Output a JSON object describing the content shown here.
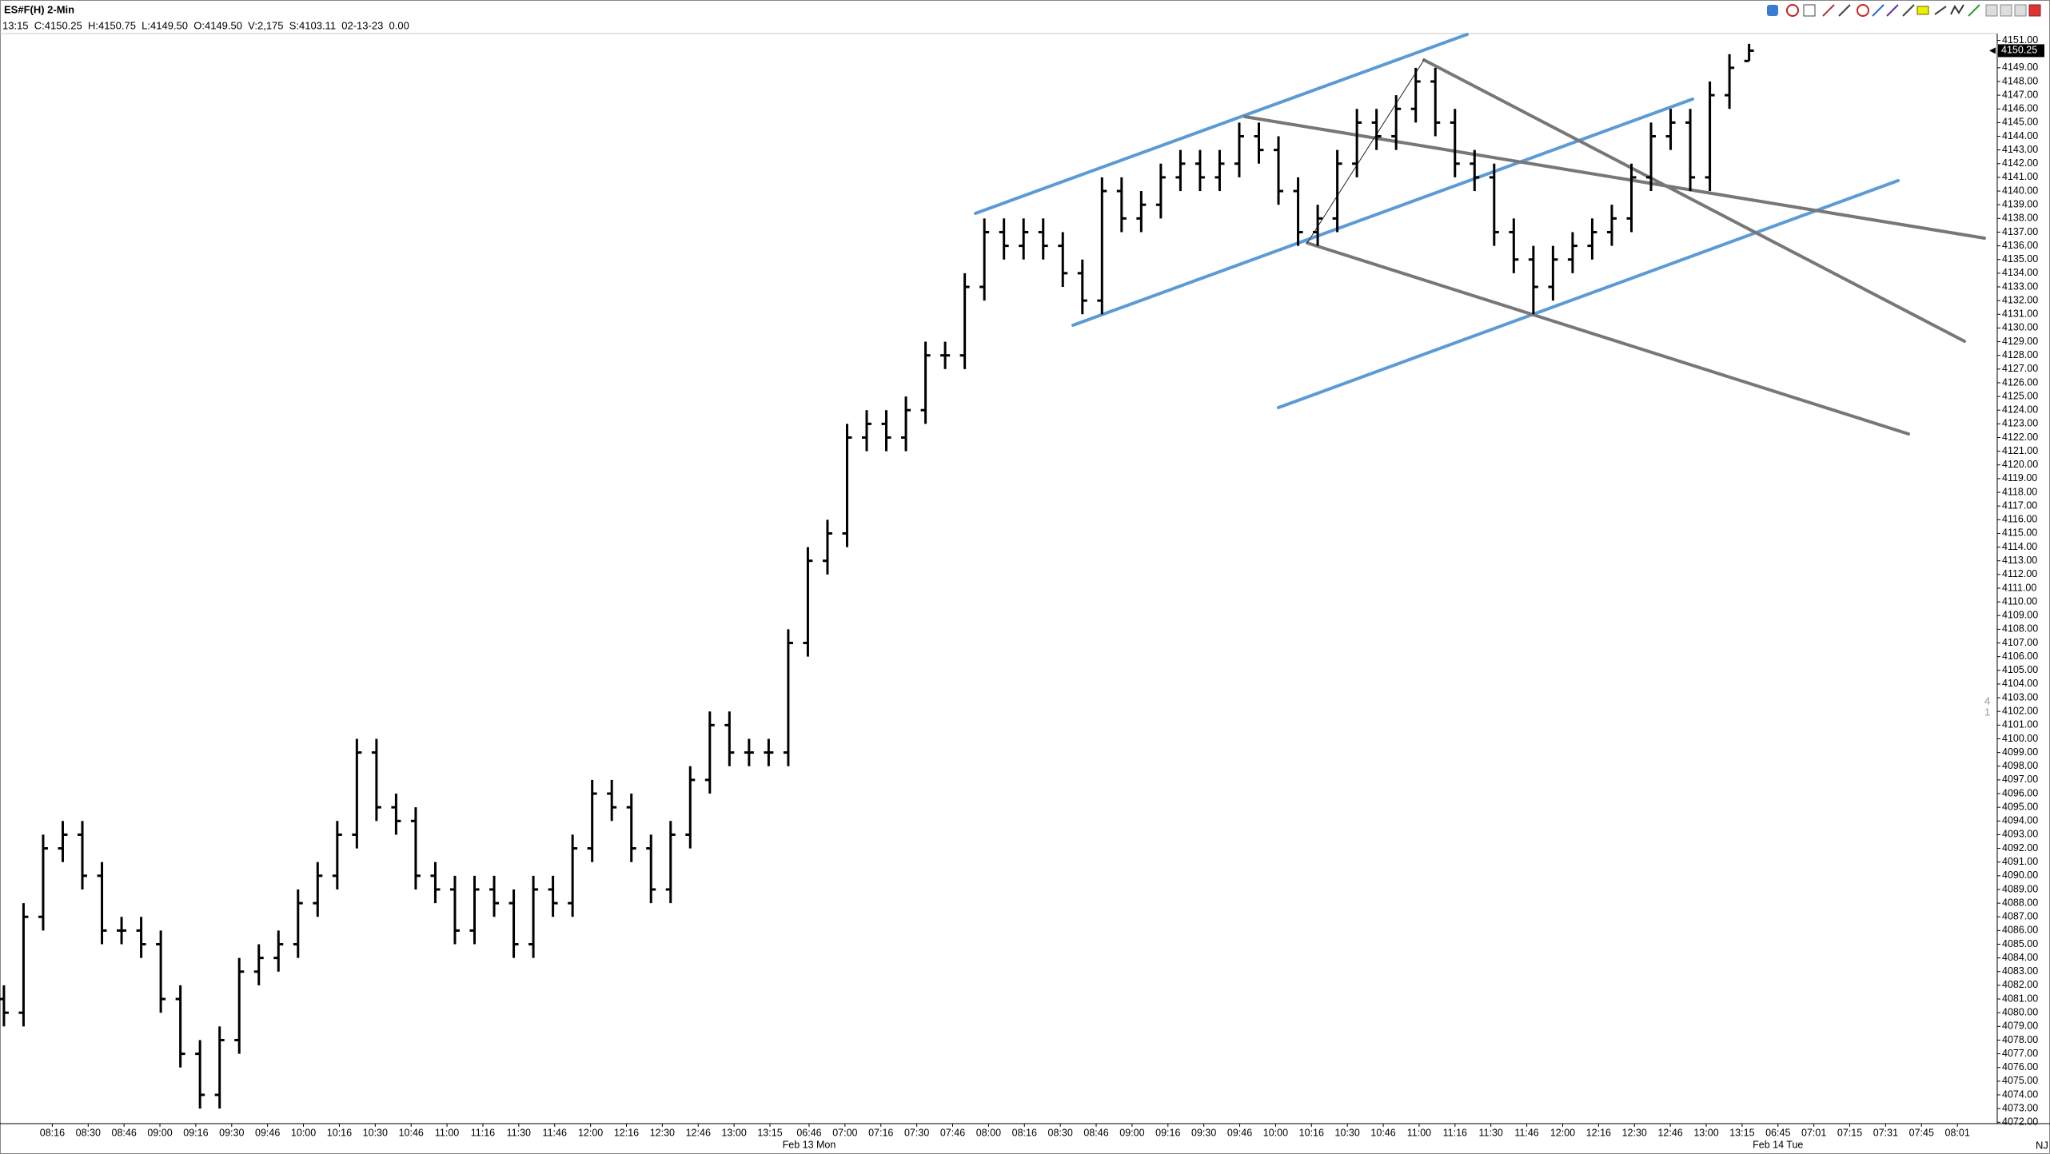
{
  "chart_data": {
    "type": "ohlc",
    "title": "ES#F(H) 2-Min",
    "subtitle": "13:15  C:4150.25  H:4150.75  L:4149.50  O:4149.50  V:2,175  S:4103.11  02-13-23  0.00",
    "last_price": 4150.25,
    "side_marker": [
      "4",
      "1"
    ],
    "corner_label": "NJ",
    "color": "#000000",
    "ylim": [
      4071.9,
      4151.5
    ],
    "yticks": [
      {
        "value": 4072,
        "label": "4072.00"
      },
      {
        "value": 4073,
        "label": "4073.00"
      },
      {
        "value": 4074,
        "label": "4074.00"
      },
      {
        "value": 4075,
        "label": "4075.00"
      },
      {
        "value": 4076,
        "label": "4076.00"
      },
      {
        "value": 4077,
        "label": "4077.00"
      },
      {
        "value": 4078,
        "label": "4078.00"
      },
      {
        "value": 4079,
        "label": "4079.00"
      },
      {
        "value": 4080,
        "label": "4080.00"
      },
      {
        "value": 4081,
        "label": "4081.00"
      },
      {
        "value": 4082,
        "label": "4082.00"
      },
      {
        "value": 4083,
        "label": "4083.00"
      },
      {
        "value": 4084,
        "label": "4084.00"
      },
      {
        "value": 4085,
        "label": "4085.00"
      },
      {
        "value": 4086,
        "label": "4086.00"
      },
      {
        "value": 4087,
        "label": "4087.00"
      },
      {
        "value": 4088,
        "label": "4088.00"
      },
      {
        "value": 4089,
        "label": "4089.00"
      },
      {
        "value": 4090,
        "label": "4090.00"
      },
      {
        "value": 4091,
        "label": "4091.00"
      },
      {
        "value": 4092,
        "label": "4092.00"
      },
      {
        "value": 4093,
        "label": "4093.00"
      },
      {
        "value": 4094,
        "label": "4094.00"
      },
      {
        "value": 4095,
        "label": "4095.00"
      },
      {
        "value": 4096,
        "label": "4096.00"
      },
      {
        "value": 4097,
        "label": "4097.00"
      },
      {
        "value": 4098,
        "label": "4098.00"
      },
      {
        "value": 4099,
        "label": "4099.00"
      },
      {
        "value": 4100,
        "label": "4100.00"
      },
      {
        "value": 4101,
        "label": "4101.00"
      },
      {
        "value": 4102,
        "label": "4102.00"
      },
      {
        "value": 4103,
        "label": "4103.00"
      },
      {
        "value": 4104,
        "label": "4104.00"
      },
      {
        "value": 4105,
        "label": "4105.00"
      },
      {
        "value": 4106,
        "label": "4106.00"
      },
      {
        "value": 4107,
        "label": "4107.00"
      },
      {
        "value": 4108,
        "label": "4108.00"
      },
      {
        "value": 4109,
        "label": "4109.00"
      },
      {
        "value": 4110,
        "label": "4110.00"
      },
      {
        "value": 4111,
        "label": "4111.00"
      },
      {
        "value": 4112,
        "label": "4112.00"
      },
      {
        "value": 4113,
        "label": "4113.00"
      },
      {
        "value": 4114,
        "label": "4114.00"
      },
      {
        "value": 4115,
        "label": "4115.00"
      },
      {
        "value": 4116,
        "label": "4116.00"
      },
      {
        "value": 4117,
        "label": "4117.00"
      },
      {
        "value": 4118,
        "label": "4118.00"
      },
      {
        "value": 4119,
        "label": "4119.00"
      },
      {
        "value": 4120,
        "label": "4120.00"
      },
      {
        "value": 4121,
        "label": "4121.00"
      },
      {
        "value": 4122,
        "label": "4122.00"
      },
      {
        "value": 4123,
        "label": "4123.00"
      },
      {
        "value": 4124,
        "label": "4124.00"
      },
      {
        "value": 4125,
        "label": "4125.00"
      },
      {
        "value": 4126,
        "label": "4126.00"
      },
      {
        "value": 4127,
        "label": "4127.00"
      },
      {
        "value": 4128,
        "label": "4128.00"
      },
      {
        "value": 4129,
        "label": "4129.00"
      },
      {
        "value": 4130,
        "label": "4130.00"
      },
      {
        "value": 4131,
        "label": "4131.00"
      },
      {
        "value": 4132,
        "label": "4132.00"
      },
      {
        "value": 4133,
        "label": "4133.00"
      },
      {
        "value": 4134,
        "label": "4134.00"
      },
      {
        "value": 4135,
        "label": "4135.00"
      },
      {
        "value": 4136,
        "label": "4136.00"
      },
      {
        "value": 4137,
        "label": "4137.00"
      },
      {
        "value": 4138,
        "label": "4138.00"
      },
      {
        "value": 4139,
        "label": "4139.00"
      },
      {
        "value": 4140,
        "label": "4140.00"
      },
      {
        "value": 4141,
        "label": "4141.00"
      },
      {
        "value": 4142,
        "label": "4142.00"
      },
      {
        "value": 4143,
        "label": "4143.00"
      },
      {
        "value": 4144,
        "label": "4144.00"
      },
      {
        "value": 4145,
        "label": "4145.00"
      },
      {
        "value": 4146,
        "label": "4146.00"
      },
      {
        "value": 4147,
        "label": "4147.00"
      },
      {
        "value": 4148,
        "label": "4148.00"
      },
      {
        "value": 4149,
        "label": "4149.00"
      },
      {
        "value": 4150,
        "label": "4150.00"
      },
      {
        "value": 4151,
        "label": "4151.00"
      }
    ],
    "x_labels": [
      "08:16",
      "08:30",
      "08:46",
      "09:00",
      "09:16",
      "09:30",
      "09:46",
      "10:00",
      "10:16",
      "10:30",
      "10:46",
      "11:00",
      "11:16",
      "11:30",
      "11:46",
      "12:00",
      "12:16",
      "12:30",
      "12:46",
      "13:00",
      "13:15",
      "06:46",
      "07:00",
      "07:16",
      "07:30",
      "07:46",
      "08:00",
      "08:16",
      "08:30",
      "08:46",
      "09:00",
      "09:16",
      "09:30",
      "09:46",
      "10:00",
      "10:16",
      "10:30",
      "10:46",
      "11:00",
      "11:16",
      "11:30",
      "11:46",
      "12:00",
      "12:16",
      "12:30",
      "12:46",
      "13:00",
      "13:15",
      "06:45",
      "07:01",
      "07:15",
      "07:31",
      "07:45",
      "08:01"
    ],
    "date_labels": [
      "Feb 13 Mon",
      "Feb 14 Tue"
    ],
    "ohlc": [
      [
        4081,
        4082,
        4079,
        4080
      ],
      [
        4080,
        4088,
        4079,
        4087
      ],
      [
        4087,
        4093,
        4086,
        4092
      ],
      [
        4092,
        4094,
        4091,
        4093
      ],
      [
        4093,
        4094,
        4089,
        4090
      ],
      [
        4090,
        4091,
        4085,
        4086
      ],
      [
        4086,
        4087,
        4085,
        4086
      ],
      [
        4086,
        4087,
        4084,
        4085
      ],
      [
        4085,
        4086,
        4080,
        4081
      ],
      [
        4081,
        4082,
        4076,
        4077
      ],
      [
        4077,
        4078,
        4073,
        4074
      ],
      [
        4074,
        4079,
        4073,
        4078
      ],
      [
        4078,
        4084,
        4077,
        4083
      ],
      [
        4083,
        4085,
        4082,
        4084
      ],
      [
        4084,
        4086,
        4083,
        4085
      ],
      [
        4085,
        4089,
        4084,
        4088
      ],
      [
        4088,
        4091,
        4087,
        4090
      ],
      [
        4090,
        4094,
        4089,
        4093
      ],
      [
        4093,
        4100,
        4092,
        4099
      ],
      [
        4099,
        4100,
        4094,
        4095
      ],
      [
        4095,
        4096,
        4093,
        4094
      ],
      [
        4094,
        4095,
        4089,
        4090
      ],
      [
        4090,
        4091,
        4088,
        4089
      ],
      [
        4089,
        4090,
        4085,
        4086
      ],
      [
        4086,
        4090,
        4085,
        4089
      ],
      [
        4089,
        4090,
        4087,
        4088
      ],
      [
        4088,
        4089,
        4084,
        4085
      ],
      [
        4085,
        4090,
        4084,
        4089
      ],
      [
        4089,
        4090,
        4087,
        4088
      ],
      [
        4088,
        4093,
        4087,
        4092
      ],
      [
        4092,
        4097,
        4091,
        4096
      ],
      [
        4096,
        4097,
        4094,
        4095
      ],
      [
        4095,
        4096,
        4091,
        4092
      ],
      [
        4092,
        4093,
        4088,
        4089
      ],
      [
        4089,
        4094,
        4088,
        4093
      ],
      [
        4093,
        4098,
        4092,
        4097
      ],
      [
        4097,
        4102,
        4096,
        4101
      ],
      [
        4101,
        4102,
        4098,
        4099
      ],
      [
        4099,
        4100,
        4098,
        4099
      ],
      [
        4099,
        4100,
        4098,
        4099
      ],
      [
        4099,
        4108,
        4098,
        4107
      ],
      [
        4107,
        4114,
        4106,
        4113
      ],
      [
        4113,
        4116,
        4112,
        4115
      ],
      [
        4115,
        4123,
        4114,
        4122
      ],
      [
        4122,
        4124,
        4121,
        4123
      ],
      [
        4123,
        4124,
        4121,
        4122
      ],
      [
        4122,
        4125,
        4121,
        4124
      ],
      [
        4124,
        4129,
        4123,
        4128
      ],
      [
        4128,
        4129,
        4127,
        4128
      ],
      [
        4128,
        4134,
        4127,
        4133
      ],
      [
        4133,
        4138,
        4132,
        4137
      ],
      [
        4137,
        4138,
        4135,
        4136
      ],
      [
        4136,
        4138,
        4135,
        4137
      ],
      [
        4137,
        4138,
        4135,
        4136
      ],
      [
        4136,
        4137,
        4133,
        4134
      ],
      [
        4134,
        4135,
        4131,
        4132
      ],
      [
        4132,
        4141,
        4131,
        4140
      ],
      [
        4140,
        4141,
        4137,
        4138
      ],
      [
        4138,
        4140,
        4137,
        4139
      ],
      [
        4139,
        4142,
        4138,
        4141
      ],
      [
        4141,
        4143,
        4140,
        4142
      ],
      [
        4142,
        4143,
        4140,
        4141
      ],
      [
        4141,
        4143,
        4140,
        4142
      ],
      [
        4142,
        4145,
        4141,
        4144
      ],
      [
        4144,
        4145,
        4142,
        4143
      ],
      [
        4143,
        4144,
        4139,
        4140
      ],
      [
        4140,
        4141,
        4136,
        4137
      ],
      [
        4137,
        4139,
        4136,
        4138
      ],
      [
        4138,
        4143,
        4137,
        4142
      ],
      [
        4142,
        4146,
        4141,
        4145
      ],
      [
        4145,
        4146,
        4143,
        4144
      ],
      [
        4144,
        4147,
        4143,
        4146
      ],
      [
        4146,
        4149,
        4145,
        4148
      ],
      [
        4148,
        4149,
        4144,
        4145
      ],
      [
        4145,
        4146,
        4141,
        4142
      ],
      [
        4142,
        4143,
        4140,
        4141
      ],
      [
        4141,
        4142,
        4136,
        4137
      ],
      [
        4137,
        4138,
        4134,
        4135
      ],
      [
        4135,
        4136,
        4131,
        4133
      ],
      [
        4133,
        4136,
        4132,
        4135
      ],
      [
        4135,
        4137,
        4134,
        4136
      ],
      [
        4136,
        4138,
        4135,
        4137
      ],
      [
        4137,
        4139,
        4136,
        4138
      ],
      [
        4138,
        4142,
        4137,
        4141
      ],
      [
        4141,
        4145,
        4140,
        4144
      ],
      [
        4144,
        4146,
        4143,
        4145
      ],
      [
        4145,
        4146,
        4140,
        4141
      ],
      [
        4141,
        4148,
        4140,
        4147
      ],
      [
        4147,
        4150,
        4146,
        4149
      ],
      [
        4149.5,
        4150.75,
        4149.5,
        4150.25
      ]
    ]
  }
}
